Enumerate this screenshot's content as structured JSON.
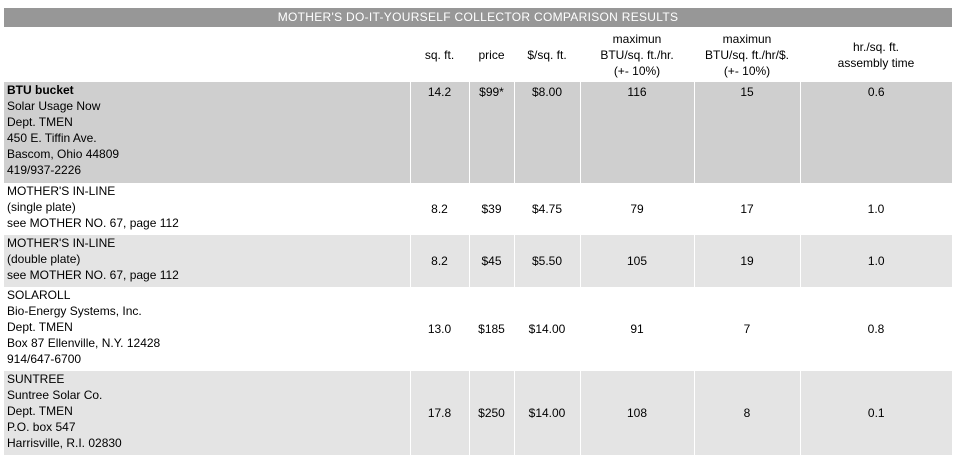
{
  "title": "MOTHER'S DO-IT-YOURSELF COLLECTOR COMPARISON RESULTS",
  "columns": {
    "sqft": "sq. ft.",
    "price": "price",
    "per_sqft": "$/sq. ft.",
    "btu_line1": "maximun",
    "btu_line2": "BTU/sq. ft./hr.",
    "btu_line3": "(+- 10%)",
    "btud_line1": "maximun",
    "btud_line2": "BTU/sq. ft./hr/$.",
    "btud_line3": "(+- 10%)",
    "hr_line1": "hr./sq. ft.",
    "hr_line2": "assembly time"
  },
  "rows": [
    {
      "lines": [
        "BTU bucket",
        "Solar Usage Now",
        "Dept. TMEN",
        "450 E. Tiffin Ave.",
        "Bascom, Ohio 44809",
        "419/937-2226"
      ],
      "sqft": "14.2",
      "price": "$99*",
      "per_sqft": "$8.00",
      "btu": "116",
      "btud": "15",
      "hr": "0.6"
    },
    {
      "lines": [
        "MOTHER'S IN-LINE",
        "(single plate)",
        "see MOTHER NO. 67, page 112"
      ],
      "sqft": "8.2",
      "price": "$39",
      "per_sqft": "$4.75",
      "btu": "79",
      "btud": "17",
      "hr": "1.0"
    },
    {
      "lines": [
        "MOTHER'S IN-LINE",
        "(double plate)",
        "see MOTHER NO. 67, page 112"
      ],
      "sqft": "8.2",
      "price": "$45",
      "per_sqft": "$5.50",
      "btu": "105",
      "btud": "19",
      "hr": "1.0"
    },
    {
      "lines": [
        "SOLAROLL",
        "Bio-Energy Systems, Inc.",
        "Dept. TMEN",
        "Box 87 Ellenville, N.Y. 12428",
        "914/647-6700"
      ],
      "sqft": "13.0",
      "price": "$185",
      "per_sqft": "$14.00",
      "btu": "91",
      "btud": "7",
      "hr": "0.8"
    },
    {
      "lines": [
        "SUNTREE",
        "Suntree Solar Co.",
        "Dept. TMEN",
        "P.O. box 547",
        "Harrisville, R.I. 02830"
      ],
      "sqft": "17.8",
      "price": "$250",
      "per_sqft": "$14.00",
      "btu": "108",
      "btud": "8",
      "hr": "0.1"
    }
  ]
}
